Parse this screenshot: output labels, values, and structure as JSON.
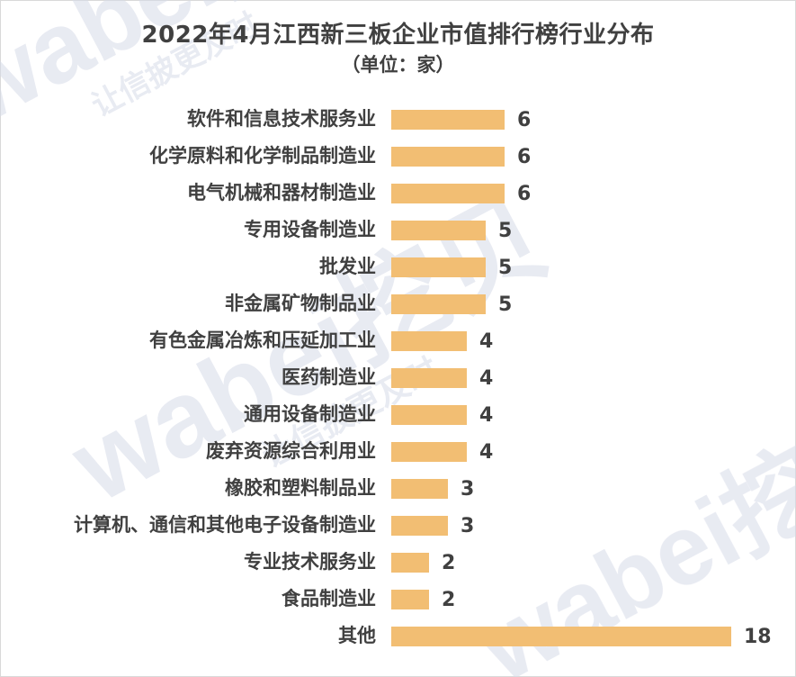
{
  "chart_data": {
    "type": "bar",
    "orientation": "horizontal",
    "title": "2022年4月江西新三板企业市值排行榜行业分布",
    "subtitle": "（单位：家）",
    "categories": [
      "软件和信息技术服务业",
      "化学原料和化学制品制造业",
      "电气机械和器材制造业",
      "专用设备制造业",
      "批发业",
      "非金属矿物制品业",
      "有色金属冶炼和压延加工业",
      "医药制造业",
      "通用设备制造业",
      "废弃资源综合利用业",
      "橡胶和塑料制品业",
      "计算机、通信和其他电子设备制造业",
      "专业技术服务业",
      "食品制造业",
      "其他"
    ],
    "values": [
      6,
      6,
      6,
      5,
      5,
      5,
      4,
      4,
      4,
      4,
      3,
      3,
      2,
      2,
      18
    ],
    "bar_color": "#F2BE73",
    "grid": false,
    "legend": "none"
  },
  "watermark": {
    "brand": "wabei挖贝",
    "slogan": "让信披更及时",
    "color": "#D6DAE8"
  }
}
